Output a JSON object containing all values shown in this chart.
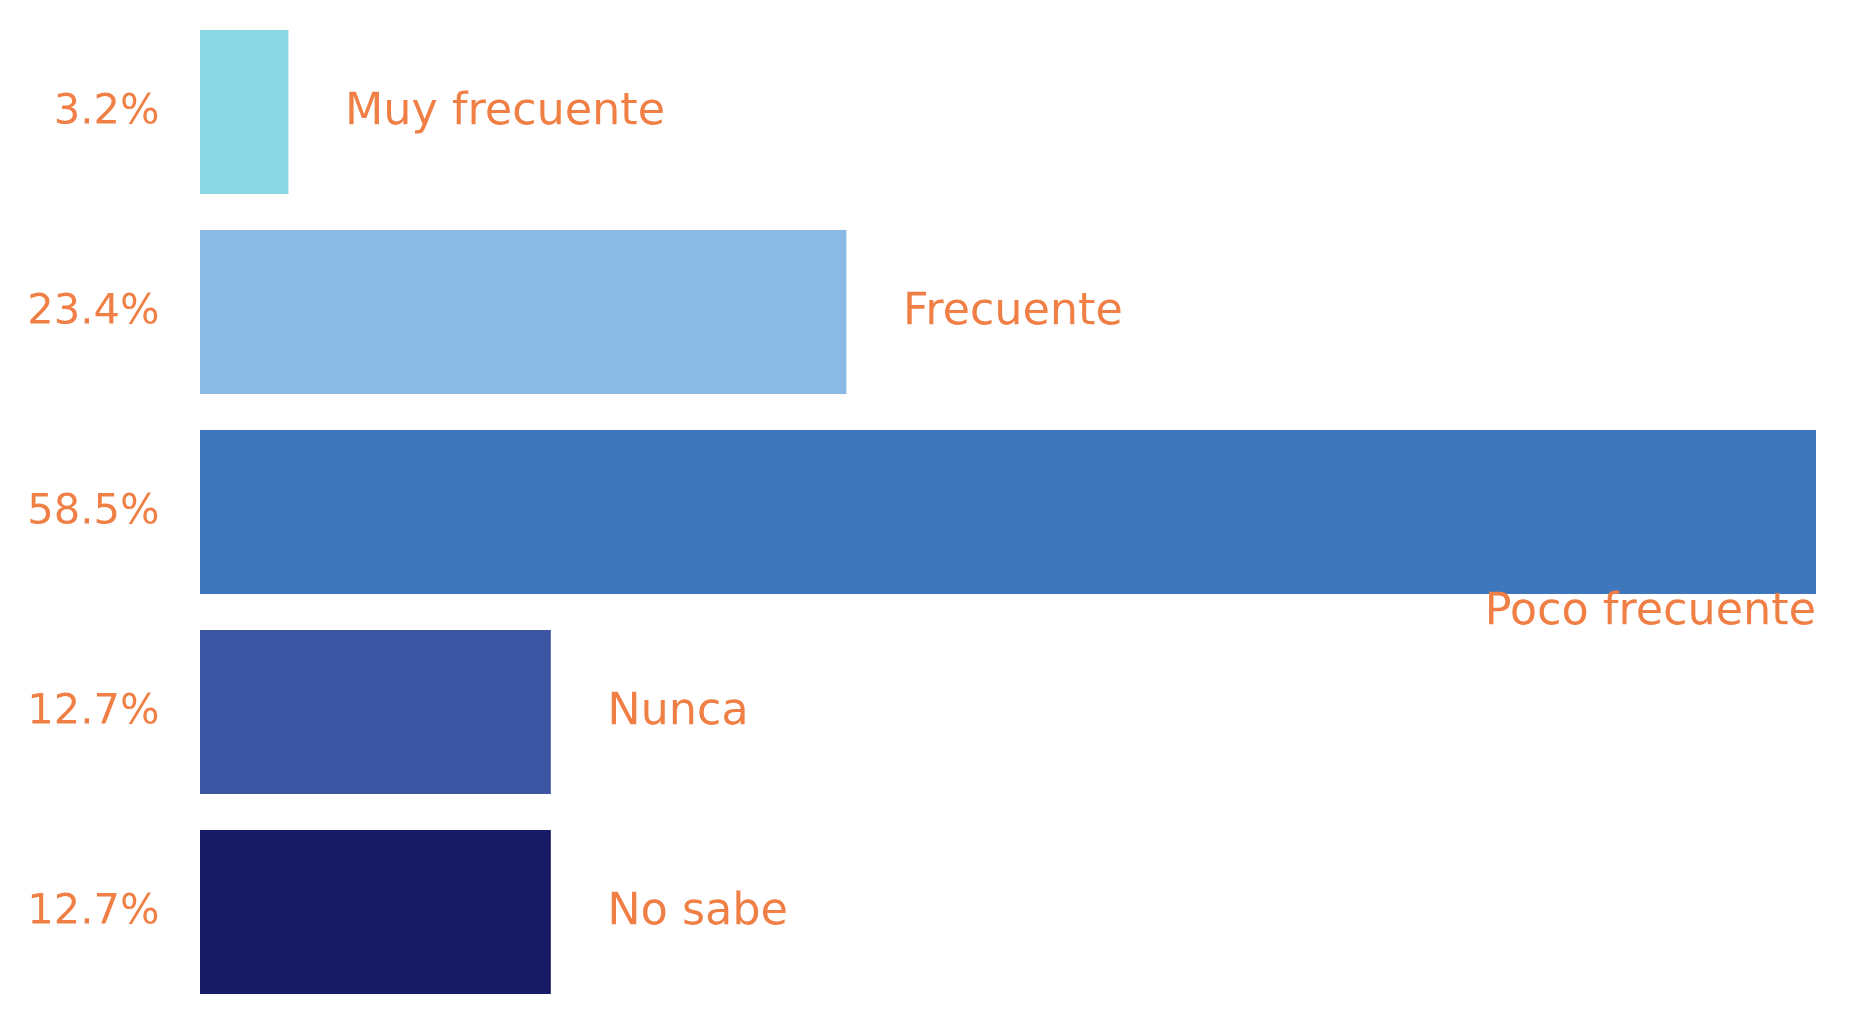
{
  "chart_data": {
    "type": "bar",
    "orientation": "horizontal",
    "categories": [
      "Muy frecuente",
      "Frecuente",
      "Poco frecuente",
      "Nunca",
      "No sabe"
    ],
    "values": [
      3.2,
      23.4,
      58.5,
      12.7,
      12.7
    ],
    "colors": [
      "#8ad6e3",
      "#8abae4",
      "#3f77bc",
      "#3b55a3",
      "#161b63"
    ],
    "value_labels": [
      "3.2%",
      "23.4%",
      "58.5%",
      "12.7%",
      "12.7%"
    ],
    "legend": false
  }
}
